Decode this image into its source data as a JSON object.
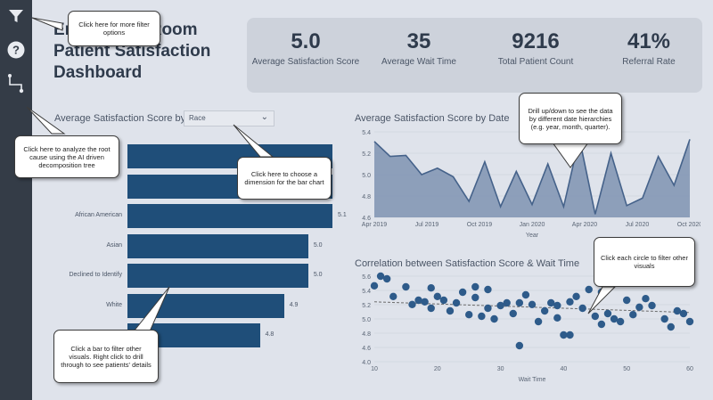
{
  "title": "Emergency Room Patient Satisfaction Dashboard",
  "rail": {
    "filter_icon": "filter-icon",
    "help_icon": "question-icon",
    "decomp_icon": "decomposition-tree-icon"
  },
  "kpis": [
    {
      "value": "5.0",
      "label": "Average Satisfaction Score"
    },
    {
      "value": "35",
      "label": "Average Wait Time"
    },
    {
      "value": "9216",
      "label": "Total Patient Count"
    },
    {
      "value": "41%",
      "label": "Referral Rate"
    }
  ],
  "bar_section": {
    "title": "Average Satisfaction Score by",
    "dropdown_value": "Race"
  },
  "line_section": {
    "title": "Average Satisfaction Score by Date"
  },
  "scatter_section": {
    "title": "Correlation between Satisfaction Score & Wait Time"
  },
  "callouts": {
    "filter": "Click here for more filter options",
    "decomp": "Click here to analyze the root cause using the AI driven decomposition tree",
    "dimension": "Click here to choose a dimension for the bar chart",
    "bar": "Click a bar to filter other visuals. Right click to drill through to see patients' details",
    "drill": "Drill up/down to see the data by different date hierarchies (e.g. year, month, quarter).",
    "circle": "Click each circle to filter other visuals"
  },
  "colors": {
    "bar": "#1f4e79",
    "area": "#45628a",
    "dot": "#2e5b8a",
    "canvas": "#dfe3eb",
    "rail": "#343c47"
  },
  "chart_data": [
    {
      "type": "bar",
      "categories": [
        "",
        "",
        "African American",
        "Asian",
        "Declined to Identify",
        "White",
        ""
      ],
      "values": [
        5.1,
        5.1,
        5.1,
        5.0,
        5.0,
        4.9,
        4.8
      ],
      "data_labels": [
        "",
        "",
        "5.1",
        "5.0",
        "5.0",
        "4.9",
        "4.8"
      ]
    },
    {
      "type": "area",
      "title": "Average Satisfaction Score by Date",
      "xlabel": "Year",
      "x_ticks": [
        "Apr 2019",
        "Jul 2019",
        "Oct 2019",
        "Jan 2020",
        "Apr 2020",
        "Jul 2020",
        "Oct 2020"
      ],
      "y_ticks": [
        "5.4",
        "5.2",
        "5.0",
        "4.8",
        "4.6"
      ],
      "ylim": [
        4.6,
        5.4
      ],
      "values": [
        5.31,
        5.17,
        5.18,
        5.0,
        5.06,
        4.98,
        4.75,
        5.12,
        4.7,
        5.03,
        4.72,
        5.1,
        4.7,
        5.34,
        4.63,
        5.2,
        4.71,
        4.78,
        5.17,
        4.9,
        5.33
      ]
    },
    {
      "type": "scatter",
      "title": "Correlation between Satisfaction Score & Wait Time",
      "xlabel": "Wait Time",
      "x_ticks": [
        "10",
        "20",
        "30",
        "40",
        "50",
        "60"
      ],
      "y_ticks": [
        "5.6",
        "5.4",
        "5.2",
        "5.0",
        "4.8",
        "4.6",
        "4.0"
      ],
      "xlim": [
        10,
        60
      ],
      "ylim": [
        4.0,
        5.6
      ],
      "trend": [
        [
          10,
          5.12
        ],
        [
          60,
          4.92
        ]
      ],
      "points": [
        [
          10,
          5.42
        ],
        [
          11,
          5.6
        ],
        [
          12,
          5.55
        ],
        [
          13,
          5.22
        ],
        [
          15,
          5.4
        ],
        [
          16,
          5.07
        ],
        [
          17,
          5.15
        ],
        [
          18,
          5.12
        ],
        [
          19,
          5.0
        ],
        [
          19,
          5.38
        ],
        [
          20,
          5.22
        ],
        [
          21,
          5.15
        ],
        [
          22,
          4.95
        ],
        [
          23,
          5.1
        ],
        [
          24,
          5.3
        ],
        [
          25,
          4.88
        ],
        [
          26,
          5.2
        ],
        [
          26,
          5.4
        ],
        [
          27,
          4.85
        ],
        [
          28,
          5.0
        ],
        [
          28,
          5.35
        ],
        [
          29,
          4.8
        ],
        [
          30,
          5.05
        ],
        [
          31,
          5.1
        ],
        [
          32,
          4.9
        ],
        [
          33,
          4.3
        ],
        [
          33,
          5.1
        ],
        [
          34,
          5.25
        ],
        [
          35,
          5.07
        ],
        [
          36,
          4.75
        ],
        [
          37,
          4.95
        ],
        [
          38,
          5.1
        ],
        [
          39,
          4.82
        ],
        [
          39,
          5.05
        ],
        [
          40,
          4.5
        ],
        [
          41,
          4.5
        ],
        [
          41,
          5.12
        ],
        [
          42,
          5.22
        ],
        [
          43,
          5.0
        ],
        [
          44,
          5.35
        ],
        [
          45,
          4.85
        ],
        [
          46,
          4.7
        ],
        [
          46,
          5.3
        ],
        [
          47,
          4.9
        ],
        [
          48,
          4.8
        ],
        [
          49,
          4.75
        ],
        [
          50,
          5.15
        ],
        [
          51,
          4.88
        ],
        [
          52,
          5.02
        ],
        [
          53,
          5.18
        ],
        [
          54,
          5.05
        ],
        [
          56,
          4.8
        ],
        [
          57,
          4.65
        ],
        [
          58,
          4.95
        ],
        [
          59,
          4.9
        ],
        [
          60,
          4.75
        ]
      ]
    }
  ]
}
